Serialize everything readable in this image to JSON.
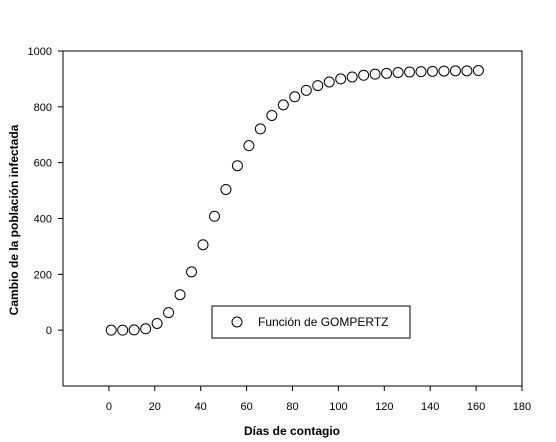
{
  "chart_data": {
    "type": "scatter",
    "title": "",
    "xlabel": "Días de contagio",
    "ylabel": "Cambio de la población infectada",
    "xlim": [
      -20,
      180
    ],
    "ylim": [
      -200,
      1000
    ],
    "xticks": [
      0,
      20,
      40,
      60,
      80,
      100,
      120,
      140,
      160,
      180
    ],
    "yticks": [
      0,
      200,
      400,
      600,
      800,
      1000
    ],
    "x_tick_labels": [
      "0",
      "20",
      "40",
      "60",
      "80",
      "100",
      "120",
      "140",
      "160",
      "180"
    ],
    "y_tick_labels": [
      "0",
      "200",
      "400",
      "600",
      "800",
      "1000"
    ],
    "grid": false,
    "legend_position": "bottom-center",
    "series": [
      {
        "name": "Función de GOMPERTZ",
        "marker": "open-circle",
        "color": "#000000",
        "x": [
          1,
          6,
          11,
          16,
          21,
          26,
          31,
          36,
          41,
          46,
          51,
          56,
          61,
          66,
          71,
          76,
          81,
          86,
          91,
          96,
          101,
          106,
          111,
          116,
          121,
          126,
          131,
          136,
          141,
          146,
          151,
          156,
          161
        ],
        "y": [
          0,
          0,
          1,
          5,
          24,
          63,
          127,
          209,
          306,
          408,
          504,
          589,
          661,
          721,
          769,
          807,
          836,
          859,
          876,
          889,
          900,
          907,
          913,
          917,
          920,
          923,
          925,
          926,
          927,
          928,
          929,
          929,
          930
        ]
      }
    ]
  }
}
